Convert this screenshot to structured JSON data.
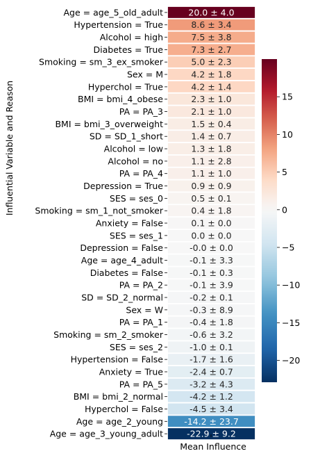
{
  "chart_data": {
    "type": "heatmap",
    "xlabel": "Mean Influence",
    "ylabel": "Influential Variable and Reason",
    "rows": [
      {
        "label": "Age = age_5_old_adult",
        "mean": 20.0,
        "text": "20.0 ± 4.0"
      },
      {
        "label": "Hypertension = True",
        "mean": 8.6,
        "text": "8.6 ± 3.4"
      },
      {
        "label": "Alcohol = high",
        "mean": 7.5,
        "text": "7.5 ± 3.8"
      },
      {
        "label": "Diabetes = True",
        "mean": 7.3,
        "text": "7.3 ± 2.7"
      },
      {
        "label": "Smoking = sm_3_ex_smoker",
        "mean": 5.0,
        "text": "5.0 ± 2.3"
      },
      {
        "label": "Sex = M",
        "mean": 4.2,
        "text": "4.2 ± 1.8"
      },
      {
        "label": "Hyperchol = True",
        "mean": 4.2,
        "text": "4.2 ± 1.4"
      },
      {
        "label": "BMI = bmi_4_obese",
        "mean": 2.3,
        "text": "2.3 ± 1.0"
      },
      {
        "label": "PA = PA_3",
        "mean": 2.1,
        "text": "2.1 ± 1.0"
      },
      {
        "label": "BMI = bmi_3_overweight",
        "mean": 1.5,
        "text": "1.5 ± 0.4"
      },
      {
        "label": "SD = SD_1_short",
        "mean": 1.4,
        "text": "1.4 ± 0.7"
      },
      {
        "label": "Alcohol = low",
        "mean": 1.3,
        "text": "1.3 ± 1.8"
      },
      {
        "label": "Alcohol = no",
        "mean": 1.1,
        "text": "1.1 ± 2.8"
      },
      {
        "label": "PA = PA_4",
        "mean": 1.1,
        "text": "1.1 ± 1.0"
      },
      {
        "label": "Depression = True",
        "mean": 0.9,
        "text": "0.9 ± 0.9"
      },
      {
        "label": "SES = ses_0",
        "mean": 0.5,
        "text": "0.5 ± 0.1"
      },
      {
        "label": "Smoking = sm_1_not_smoker",
        "mean": 0.4,
        "text": "0.4 ± 1.8"
      },
      {
        "label": "Anxiety = False",
        "mean": 0.1,
        "text": "0.1 ± 0.0"
      },
      {
        "label": "SES = ses_1",
        "mean": 0.0,
        "text": "0.0 ± 0.0"
      },
      {
        "label": "Depression = False",
        "mean": -0.0,
        "text": "-0.0 ± 0.0"
      },
      {
        "label": "Age = age_4_adult",
        "mean": -0.1,
        "text": "-0.1 ± 3.3"
      },
      {
        "label": "Diabetes = False",
        "mean": -0.1,
        "text": "-0.1 ± 0.3"
      },
      {
        "label": "PA = PA_2",
        "mean": -0.1,
        "text": "-0.1 ± 3.9"
      },
      {
        "label": "SD = SD_2_normal",
        "mean": -0.2,
        "text": "-0.2 ± 0.1"
      },
      {
        "label": "Sex = W",
        "mean": -0.3,
        "text": "-0.3 ± 8.9"
      },
      {
        "label": "PA = PA_1",
        "mean": -0.4,
        "text": "-0.4 ± 1.8"
      },
      {
        "label": "Smoking = sm_2_smoker",
        "mean": -0.6,
        "text": "-0.6 ± 3.2"
      },
      {
        "label": "SES = ses_2",
        "mean": -1.0,
        "text": "-1.0 ± 0.1"
      },
      {
        "label": "Hypertension = False",
        "mean": -1.7,
        "text": "-1.7 ± 1.6"
      },
      {
        "label": "Anxiety = True",
        "mean": -2.4,
        "text": "-2.4 ± 0.7"
      },
      {
        "label": "PA = PA_5",
        "mean": -3.2,
        "text": "-3.2 ± 4.3"
      },
      {
        "label": "BMI = bmi_2_normal",
        "mean": -4.2,
        "text": "-4.2 ± 1.2"
      },
      {
        "label": "Hyperchol = False",
        "mean": -4.5,
        "text": "-4.5 ± 3.4"
      },
      {
        "label": "Age = age_2_young",
        "mean": -14.2,
        "text": "-14.2 ± 23.7"
      },
      {
        "label": "Age = age_3_young_adult",
        "mean": -22.9,
        "text": "-22.9 ± 9.2"
      }
    ],
    "colorbar": {
      "colormap": "RdBu_r (diverging, centered at 0)",
      "range": [
        -22.9,
        20.0
      ],
      "ticks": [
        15,
        10,
        5,
        0,
        -5,
        -10,
        -15,
        -20
      ],
      "tick_labels": [
        "15",
        "10",
        "5",
        "0",
        "−5",
        "−10",
        "−15",
        "−20"
      ]
    }
  }
}
